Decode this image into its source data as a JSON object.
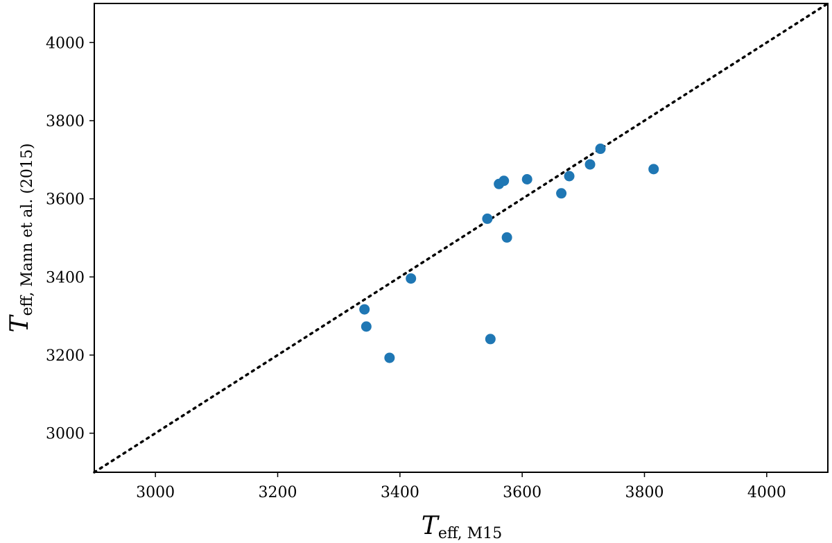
{
  "chart_data": {
    "type": "scatter",
    "xlabel": {
      "main": "T",
      "sub": "eff, M15"
    },
    "ylabel": {
      "main": "T",
      "sub": "eff, Mann et al. (2015)"
    },
    "xlim": [
      2900,
      4100
    ],
    "ylim": [
      2900,
      4100
    ],
    "xticks": [
      3000,
      3200,
      3400,
      3600,
      3800,
      4000
    ],
    "yticks": [
      3000,
      3200,
      3400,
      3600,
      3800,
      4000
    ],
    "xtick_labels": [
      "3000",
      "3200",
      "3400",
      "3600",
      "3800",
      "4000"
    ],
    "ytick_labels": [
      "3000",
      "3200",
      "3400",
      "3600",
      "3800",
      "4000"
    ],
    "grid": false,
    "reference_line": {
      "style": "dotted",
      "color": "#000000",
      "from": [
        2900,
        2900
      ],
      "to": [
        4100,
        4100
      ]
    },
    "series": [
      {
        "color": "#1f77b4",
        "points": [
          {
            "x": 3342,
            "y": 3317
          },
          {
            "x": 3345,
            "y": 3273
          },
          {
            "x": 3383,
            "y": 3193
          },
          {
            "x": 3418,
            "y": 3396
          },
          {
            "x": 3543,
            "y": 3549
          },
          {
            "x": 3548,
            "y": 3241
          },
          {
            "x": 3562,
            "y": 3638
          },
          {
            "x": 3570,
            "y": 3646
          },
          {
            "x": 3575,
            "y": 3501
          },
          {
            "x": 3608,
            "y": 3650
          },
          {
            "x": 3664,
            "y": 3614
          },
          {
            "x": 3677,
            "y": 3658
          },
          {
            "x": 3711,
            "y": 3688
          },
          {
            "x": 3728,
            "y": 3728
          },
          {
            "x": 3815,
            "y": 3676
          }
        ]
      }
    ]
  }
}
